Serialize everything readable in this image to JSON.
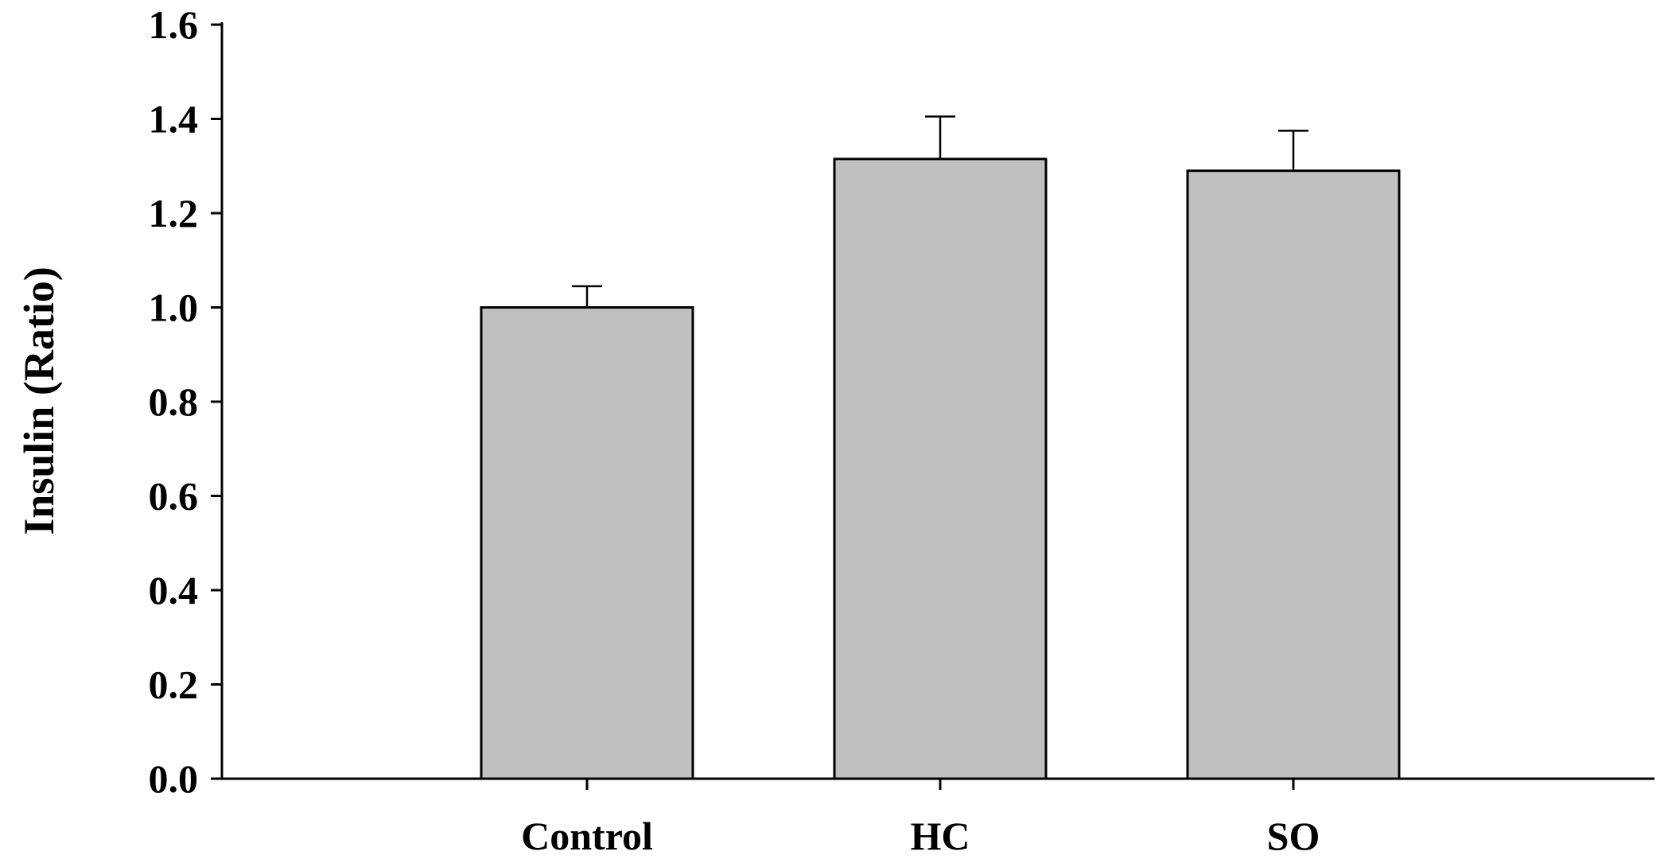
{
  "chart_data": {
    "type": "bar",
    "title": "",
    "xlabel": "",
    "ylabel": "Insulin (Ratio)",
    "categories": [
      "Control",
      "HC",
      "SO"
    ],
    "values": [
      1.0,
      1.315,
      1.29
    ],
    "error_plus": [
      0.045,
      0.09,
      0.085
    ],
    "ylim": [
      0.0,
      1.6
    ],
    "yticks": [
      0.0,
      0.2,
      0.4,
      0.6,
      0.8,
      1.0,
      1.2,
      1.4,
      1.6
    ],
    "ytick_labels": [
      "0.0",
      "0.2",
      "0.4",
      "0.6",
      "0.8",
      "1.0",
      "1.2",
      "1.4",
      "1.6"
    ],
    "grid": false,
    "legend": "none",
    "colors": {
      "bar_fill": "#c0c0c0",
      "bar_stroke": "#000000",
      "axis": "#000000"
    }
  }
}
